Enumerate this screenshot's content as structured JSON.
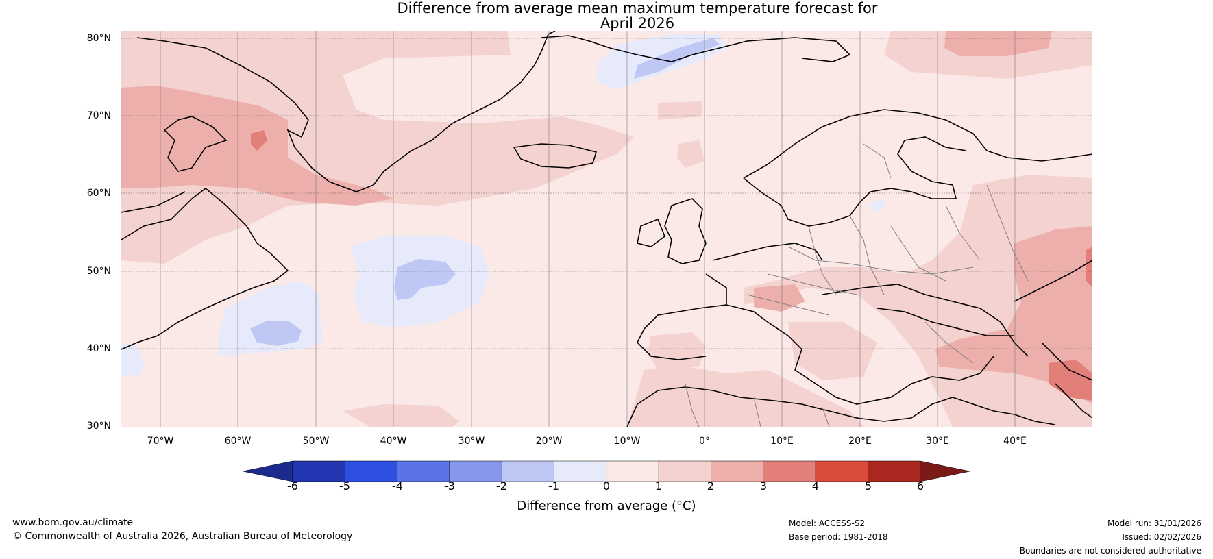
{
  "title": {
    "line1": "Difference from average mean maximum temperature forecast for",
    "line2": "April 2026"
  },
  "map": {
    "latitude_labels": [
      "80°N",
      "70°N",
      "60°N",
      "50°N",
      "40°N",
      "30°N"
    ],
    "longitude_labels": [
      "70°W",
      "60°W",
      "50°W",
      "40°W",
      "30°W",
      "20°W",
      "10°W",
      "0°",
      "10°E",
      "20°E",
      "30°E",
      "40°E"
    ]
  },
  "colorbar": {
    "title": "Difference from average (°C)",
    "ticks": [
      "-6",
      "-5",
      "-4",
      "-3",
      "-2",
      "-1",
      "0",
      "1",
      "2",
      "3",
      "4",
      "5",
      "6"
    ],
    "colors": [
      "#1b2a8c",
      "#2336b1",
      "#2e4fe0",
      "#5a74e6",
      "#8798ec",
      "#bfc8f5",
      "#e6eafb",
      "#fbe9e8",
      "#f4d2d0",
      "#edafab",
      "#e37f79",
      "#da4b3c",
      "#a9281f",
      "#7a1b17"
    ]
  },
  "footer": {
    "website": "www.bom.gov.au/climate",
    "copyright": "© Commonwealth of Australia 2026, Australian Bureau of Meteorology",
    "model": "Model: ACCESS-S2",
    "base_period": "Base period: 1981-2018",
    "model_run": "Model run: 31/01/2026",
    "issued": "Issued: 02/02/2026",
    "disclaimer": "Boundaries are not considered authoritative"
  }
}
